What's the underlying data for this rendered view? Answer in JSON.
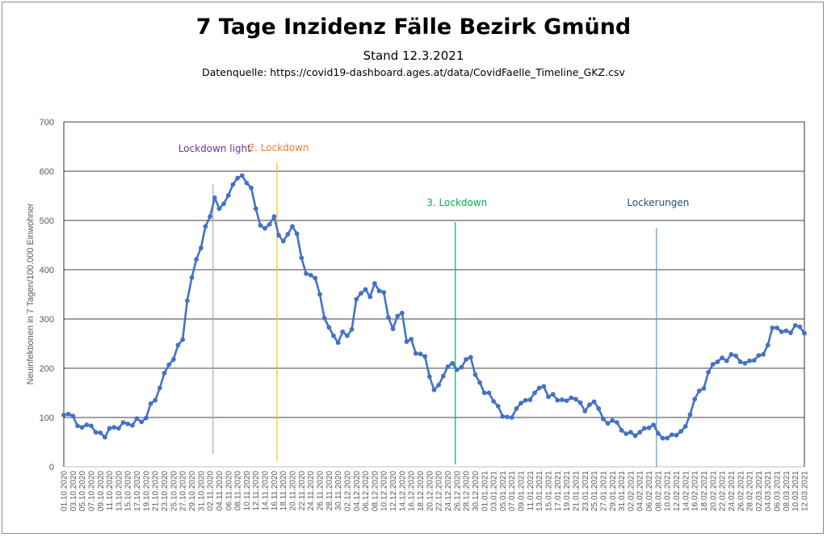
{
  "chart_data": {
    "type": "line",
    "title": "7 Tage Inzidenz Fälle Bezirk Gmünd",
    "subtitle": "Stand 12.3.2021",
    "source": "Datenquelle: https://covid19-dashboard.ages.at/data/CovidFaelle_Timeline_GKZ.csv",
    "ylabel": "Neuinfektionen in 7 Tagen/100.000 Einwohner",
    "ylim": [
      0,
      700
    ],
    "yticks": [
      0,
      100,
      200,
      300,
      400,
      500,
      600,
      700
    ],
    "grid": true,
    "x_start": "01.10.2020",
    "x_labels": [
      "01.10.2020",
      "03.10.2020",
      "05.10.2020",
      "07.10.2020",
      "09.10.2020",
      "11.10.2020",
      "13.10.2020",
      "15.10.2020",
      "17.10.2020",
      "19.10.2020",
      "21.10.2020",
      "23.10.2020",
      "25.10.2020",
      "27.10.2020",
      "29.10.2020",
      "31.10.2020",
      "02.11.2020",
      "04.11.2020",
      "06.11.2020",
      "08.11.2020",
      "10.11.2020",
      "12.11.2020",
      "14.11.2020",
      "16.11.2020",
      "18.11.2020",
      "20.11.2020",
      "22.11.2020",
      "24.11.2020",
      "26.11.2020",
      "28.11.2020",
      "30.11.2020",
      "02.12.2020",
      "04.12.2020",
      "06.12.2020",
      "08.12.2020",
      "10.12.2020",
      "12.12.2020",
      "14.12.2020",
      "16.12.2020",
      "18.12.2020",
      "20.12.2020",
      "22.12.2020",
      "24.12.2020",
      "26.12.2020",
      "28.12.2020",
      "30.12.2020",
      "01.01.2021",
      "03.01.2021",
      "05.01.2021",
      "07.01.2021",
      "09.01.2021",
      "11.01.2021",
      "13.01.2021",
      "15.01.2021",
      "17.01.2021",
      "19.01.2021",
      "21.01.2021",
      "23.01.2021",
      "25.01.2021",
      "27.01.2021",
      "29.01.2021",
      "31.01.2021",
      "02.02.2021",
      "04.02.2021",
      "06.02.2021",
      "08.02.2021",
      "10.02.2021",
      "12.02.2021",
      "14.02.2021",
      "16.02.2021",
      "18.02.2021",
      "20.02.2021",
      "22.02.2021",
      "24.02.2021",
      "26.02.2021",
      "28.02.2021",
      "02.03.2021",
      "04.03.2021",
      "06.03.2021",
      "08.03.2021",
      "10.03.2021",
      "12.03.2021"
    ],
    "series": [
      {
        "color": "#4472c4",
        "values": [
          105,
          107,
          103,
          83,
          80,
          85,
          83,
          70,
          69,
          60,
          78,
          80,
          78,
          90,
          87,
          84,
          98,
          91,
          99,
          128,
          135,
          160,
          190,
          207,
          218,
          247,
          258,
          337,
          384,
          421,
          444,
          488,
          508,
          546,
          524,
          534,
          551,
          573,
          586,
          591,
          576,
          566,
          524,
          490,
          484,
          492,
          508,
          470,
          458,
          472,
          488,
          473,
          424,
          392,
          389,
          383,
          350,
          302,
          283,
          266,
          252,
          274,
          266,
          279,
          340,
          352,
          360,
          345,
          372,
          357,
          354,
          303,
          280,
          306,
          312,
          254,
          259,
          230,
          229,
          224,
          183,
          156,
          166,
          184,
          203,
          210,
          197,
          202,
          218,
          222,
          187,
          171,
          150,
          150,
          133,
          123,
          102,
          101,
          100,
          118,
          129,
          135,
          136,
          150,
          160,
          163,
          142,
          147,
          135,
          136,
          134,
          140,
          137,
          130,
          113,
          126,
          132,
          118,
          97,
          88,
          94,
          90,
          74,
          67,
          70,
          63,
          70,
          78,
          79,
          85,
          68,
          58,
          58,
          65,
          64,
          72,
          82,
          106,
          137,
          154,
          159,
          192,
          208,
          213,
          221,
          215,
          228,
          225,
          213,
          210,
          215,
          216,
          226,
          228,
          247,
          282,
          282,
          274,
          276,
          272,
          287,
          284,
          271
        ]
      }
    ],
    "annotations": [
      {
        "label": "Lockdown light",
        "date": "03.11.2020",
        "color": "#7030a0",
        "line_color": "#b49ad4"
      },
      {
        "label": "2. Lockdown",
        "date": "17.11.2020",
        "color": "#ed7d31",
        "line_color": "#ffc000"
      },
      {
        "label": "3. Lockdown",
        "date": "26.12.2020",
        "color": "#00b050",
        "line_color": "#00b050"
      },
      {
        "label": "Lockerungen",
        "date": "08.02.2021",
        "color": "#1f4e79",
        "line_color": "#5b9bd5"
      }
    ]
  }
}
